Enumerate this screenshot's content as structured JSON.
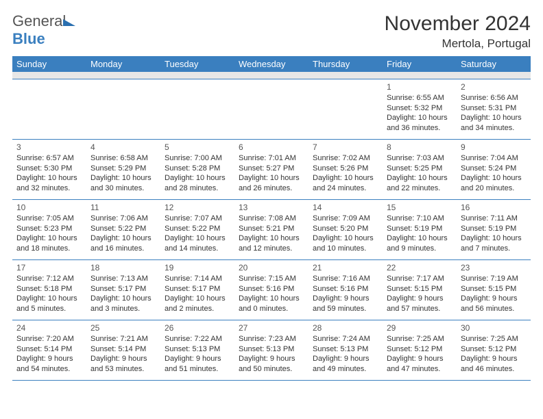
{
  "logo": {
    "part1": "General",
    "part2": "Blue"
  },
  "title": "November 2024",
  "location": "Mertola, Portugal",
  "brand_color": "#3a7fbf",
  "text_color": "#333333",
  "header_bg": "#3a7fbf",
  "header_fg": "#ffffff",
  "spacer_bg": "#e7e7e7",
  "weekdays": [
    "Sunday",
    "Monday",
    "Tuesday",
    "Wednesday",
    "Thursday",
    "Friday",
    "Saturday"
  ],
  "weeks": [
    [
      null,
      null,
      null,
      null,
      null,
      {
        "d": "1",
        "sr": "Sunrise: 6:55 AM",
        "ss": "Sunset: 5:32 PM",
        "dl": "Daylight: 10 hours and 36 minutes."
      },
      {
        "d": "2",
        "sr": "Sunrise: 6:56 AM",
        "ss": "Sunset: 5:31 PM",
        "dl": "Daylight: 10 hours and 34 minutes."
      }
    ],
    [
      {
        "d": "3",
        "sr": "Sunrise: 6:57 AM",
        "ss": "Sunset: 5:30 PM",
        "dl": "Daylight: 10 hours and 32 minutes."
      },
      {
        "d": "4",
        "sr": "Sunrise: 6:58 AM",
        "ss": "Sunset: 5:29 PM",
        "dl": "Daylight: 10 hours and 30 minutes."
      },
      {
        "d": "5",
        "sr": "Sunrise: 7:00 AM",
        "ss": "Sunset: 5:28 PM",
        "dl": "Daylight: 10 hours and 28 minutes."
      },
      {
        "d": "6",
        "sr": "Sunrise: 7:01 AM",
        "ss": "Sunset: 5:27 PM",
        "dl": "Daylight: 10 hours and 26 minutes."
      },
      {
        "d": "7",
        "sr": "Sunrise: 7:02 AM",
        "ss": "Sunset: 5:26 PM",
        "dl": "Daylight: 10 hours and 24 minutes."
      },
      {
        "d": "8",
        "sr": "Sunrise: 7:03 AM",
        "ss": "Sunset: 5:25 PM",
        "dl": "Daylight: 10 hours and 22 minutes."
      },
      {
        "d": "9",
        "sr": "Sunrise: 7:04 AM",
        "ss": "Sunset: 5:24 PM",
        "dl": "Daylight: 10 hours and 20 minutes."
      }
    ],
    [
      {
        "d": "10",
        "sr": "Sunrise: 7:05 AM",
        "ss": "Sunset: 5:23 PM",
        "dl": "Daylight: 10 hours and 18 minutes."
      },
      {
        "d": "11",
        "sr": "Sunrise: 7:06 AM",
        "ss": "Sunset: 5:22 PM",
        "dl": "Daylight: 10 hours and 16 minutes."
      },
      {
        "d": "12",
        "sr": "Sunrise: 7:07 AM",
        "ss": "Sunset: 5:22 PM",
        "dl": "Daylight: 10 hours and 14 minutes."
      },
      {
        "d": "13",
        "sr": "Sunrise: 7:08 AM",
        "ss": "Sunset: 5:21 PM",
        "dl": "Daylight: 10 hours and 12 minutes."
      },
      {
        "d": "14",
        "sr": "Sunrise: 7:09 AM",
        "ss": "Sunset: 5:20 PM",
        "dl": "Daylight: 10 hours and 10 minutes."
      },
      {
        "d": "15",
        "sr": "Sunrise: 7:10 AM",
        "ss": "Sunset: 5:19 PM",
        "dl": "Daylight: 10 hours and 9 minutes."
      },
      {
        "d": "16",
        "sr": "Sunrise: 7:11 AM",
        "ss": "Sunset: 5:19 PM",
        "dl": "Daylight: 10 hours and 7 minutes."
      }
    ],
    [
      {
        "d": "17",
        "sr": "Sunrise: 7:12 AM",
        "ss": "Sunset: 5:18 PM",
        "dl": "Daylight: 10 hours and 5 minutes."
      },
      {
        "d": "18",
        "sr": "Sunrise: 7:13 AM",
        "ss": "Sunset: 5:17 PM",
        "dl": "Daylight: 10 hours and 3 minutes."
      },
      {
        "d": "19",
        "sr": "Sunrise: 7:14 AM",
        "ss": "Sunset: 5:17 PM",
        "dl": "Daylight: 10 hours and 2 minutes."
      },
      {
        "d": "20",
        "sr": "Sunrise: 7:15 AM",
        "ss": "Sunset: 5:16 PM",
        "dl": "Daylight: 10 hours and 0 minutes."
      },
      {
        "d": "21",
        "sr": "Sunrise: 7:16 AM",
        "ss": "Sunset: 5:16 PM",
        "dl": "Daylight: 9 hours and 59 minutes."
      },
      {
        "d": "22",
        "sr": "Sunrise: 7:17 AM",
        "ss": "Sunset: 5:15 PM",
        "dl": "Daylight: 9 hours and 57 minutes."
      },
      {
        "d": "23",
        "sr": "Sunrise: 7:19 AM",
        "ss": "Sunset: 5:15 PM",
        "dl": "Daylight: 9 hours and 56 minutes."
      }
    ],
    [
      {
        "d": "24",
        "sr": "Sunrise: 7:20 AM",
        "ss": "Sunset: 5:14 PM",
        "dl": "Daylight: 9 hours and 54 minutes."
      },
      {
        "d": "25",
        "sr": "Sunrise: 7:21 AM",
        "ss": "Sunset: 5:14 PM",
        "dl": "Daylight: 9 hours and 53 minutes."
      },
      {
        "d": "26",
        "sr": "Sunrise: 7:22 AM",
        "ss": "Sunset: 5:13 PM",
        "dl": "Daylight: 9 hours and 51 minutes."
      },
      {
        "d": "27",
        "sr": "Sunrise: 7:23 AM",
        "ss": "Sunset: 5:13 PM",
        "dl": "Daylight: 9 hours and 50 minutes."
      },
      {
        "d": "28",
        "sr": "Sunrise: 7:24 AM",
        "ss": "Sunset: 5:13 PM",
        "dl": "Daylight: 9 hours and 49 minutes."
      },
      {
        "d": "29",
        "sr": "Sunrise: 7:25 AM",
        "ss": "Sunset: 5:12 PM",
        "dl": "Daylight: 9 hours and 47 minutes."
      },
      {
        "d": "30",
        "sr": "Sunrise: 7:25 AM",
        "ss": "Sunset: 5:12 PM",
        "dl": "Daylight: 9 hours and 46 minutes."
      }
    ]
  ]
}
